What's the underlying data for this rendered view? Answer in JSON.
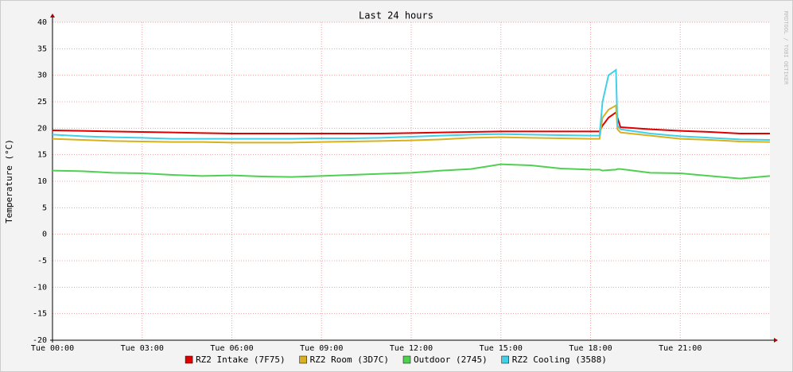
{
  "chart_data": {
    "type": "line",
    "title": "Last 24 hours",
    "y_label": "Temperature (°C)",
    "watermark": "RRDTOOL / TOBI OETIKER",
    "x": [
      0,
      1,
      2,
      3,
      4,
      5,
      6,
      7,
      8,
      9,
      10,
      11,
      12,
      13,
      14,
      15,
      16,
      17,
      18,
      18.3,
      18.4,
      18.6,
      18.85,
      18.9,
      19,
      20,
      21,
      22,
      23,
      24
    ],
    "xlim": [
      0,
      24
    ],
    "xticks": [
      {
        "value": 0,
        "label": "Tue 00:00"
      },
      {
        "value": 3,
        "label": "Tue 03:00"
      },
      {
        "value": 6,
        "label": "Tue 06:00"
      },
      {
        "value": 9,
        "label": "Tue 09:00"
      },
      {
        "value": 12,
        "label": "Tue 12:00"
      },
      {
        "value": 15,
        "label": "Tue 15:00"
      },
      {
        "value": 18,
        "label": "Tue 18:00"
      },
      {
        "value": 21,
        "label": "Tue 21:00"
      }
    ],
    "ylim": [
      -20,
      40
    ],
    "yticks": [
      -20,
      -15,
      -10,
      -5,
      0,
      5,
      10,
      15,
      20,
      25,
      30,
      35,
      40
    ],
    "grid": true,
    "legend": "bottom",
    "series": [
      {
        "name": "RZ2 Intake (7F75)",
        "color": "#e00000",
        "values": [
          19.6,
          19.5,
          19.4,
          19.3,
          19.2,
          19.1,
          19,
          19,
          19,
          19,
          19,
          19,
          19.1,
          19.2,
          19.3,
          19.4,
          19.4,
          19.4,
          19.4,
          19.4,
          20.5,
          22,
          23,
          22,
          20.2,
          19.8,
          19.5,
          19.3,
          19,
          19
        ]
      },
      {
        "name": "RZ2 Room (3D7C)",
        "color": "#d8b020",
        "values": [
          18,
          17.8,
          17.6,
          17.5,
          17.4,
          17.4,
          17.3,
          17.3,
          17.3,
          17.4,
          17.5,
          17.6,
          17.7,
          17.9,
          18.2,
          18.3,
          18.2,
          18.1,
          18,
          18,
          22,
          23.5,
          24.3,
          19.8,
          19.2,
          18.6,
          18,
          17.8,
          17.5,
          17.4
        ]
      },
      {
        "name": "Outdoor (2745)",
        "color": "#50d050",
        "values": [
          12,
          11.9,
          11.6,
          11.5,
          11.2,
          11,
          11.1,
          10.9,
          10.8,
          11,
          11.2,
          11.4,
          11.6,
          12,
          12.3,
          13.2,
          13,
          12.4,
          12.2,
          12.2,
          12,
          12.1,
          12.2,
          12.3,
          12.3,
          11.6,
          11.5,
          11,
          10.5,
          11
        ]
      },
      {
        "name": "RZ2 Cooling (3588)",
        "color": "#40d0e8",
        "values": [
          18.8,
          18.5,
          18.3,
          18.2,
          18,
          18,
          18,
          18,
          18,
          18.1,
          18.1,
          18.2,
          18.4,
          18.6,
          18.8,
          18.9,
          18.8,
          18.7,
          18.6,
          18.6,
          25,
          30,
          31,
          20.5,
          19.8,
          19,
          18.5,
          18.2,
          17.9,
          17.8
        ]
      }
    ]
  }
}
